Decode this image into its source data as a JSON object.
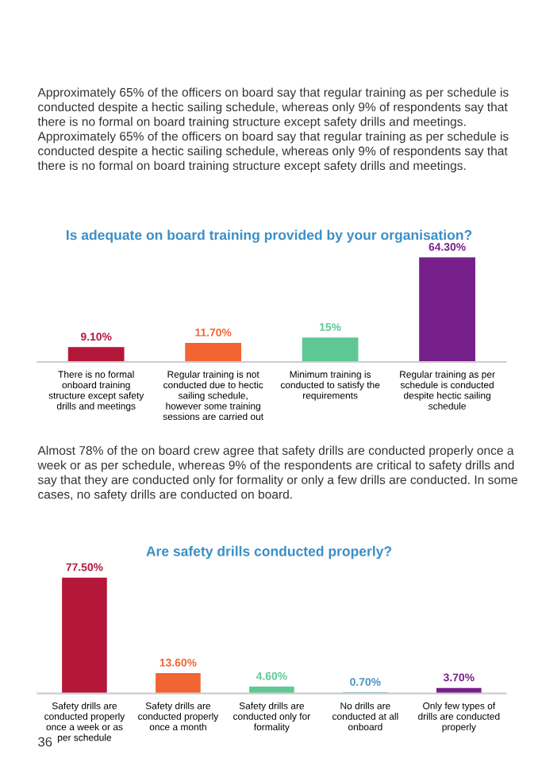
{
  "chart_data": [
    {
      "type": "bar",
      "title": "Is adequate on board training provided by your organisation?",
      "categories": [
        "There is no formal onboard training structure except safety drills and meetings",
        "Regular training is not conducted due to hectic sailing schedule, however some training sessions are carried out",
        "Minimum training is conducted to satisfy the requirements",
        "Regular training as per schedule is conducted despite hectic sailing schedule"
      ],
      "values": [
        9.1,
        11.7,
        15,
        64.3
      ],
      "colors": [
        "#b5173b",
        "#f26431",
        "#5ec795",
        "#761f8a"
      ],
      "value_labels": [
        "9.10%",
        "11.70%",
        "15%",
        "64.30%"
      ],
      "annotations": [
        "Approximately 65% of the officers on board say that regular training as per schedule is conducted despite a hectic sailing schedule, whereas only 9% of respondents say that there is no formal on board training structure except safety drills and meetings. Approximately 65% of the officers on board say that regular training as per schedule is conducted despite a hectic sailing schedule, whereas only 9% of respondents say that there is no formal on board training structure except safety drills and meetings."
      ]
    },
    {
      "type": "bar",
      "title": "Are safety drills conducted properly?",
      "categories": [
        "Safety drills are conducted properly once a week or as per schedule",
        "Safety drills are conducted properly once a month",
        "Safety drills are conducted only for formality",
        "No drills are conducted at all onboard",
        "Only few types of drills are conducted properly"
      ],
      "values": [
        77.5,
        13.6,
        4.6,
        0.7,
        3.7
      ],
      "colors": [
        "#b5173b",
        "#f26431",
        "#5ec795",
        "#4a93c4",
        "#761f8a"
      ],
      "value_labels": [
        "77.50%",
        "13.60%",
        "4.60%",
        "0.70%",
        "3.70%"
      ],
      "annotations": [
        "Almost 78% of the on board crew agree that safety drills are conducted properly once a week or as per schedule, whereas 9% of the respondents are critical to safety drills and say that they are conducted only for formality or only a few drills are conducted. In some cases, no safety drills are conducted on board.",
        "36"
      ]
    }
  ]
}
